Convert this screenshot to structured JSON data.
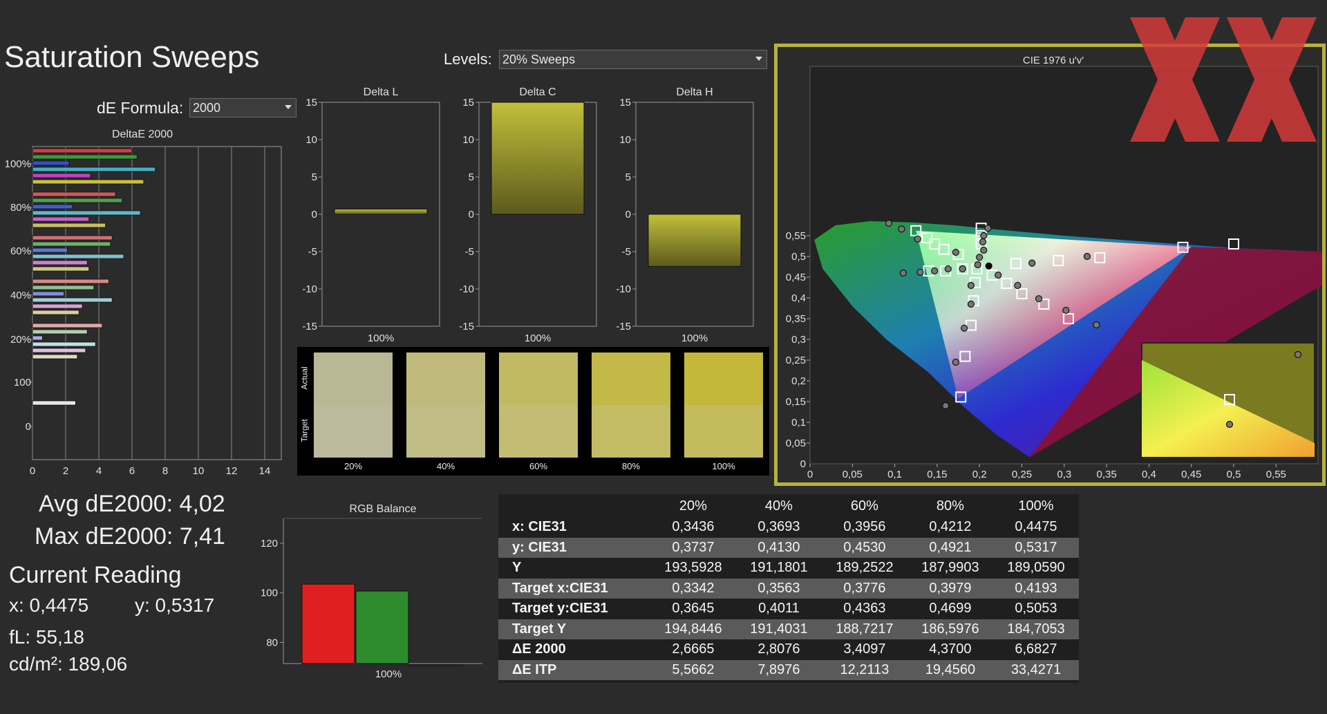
{
  "page": {
    "title": "Saturation Sweeps",
    "de_formula_label": "dE Formula:",
    "de_formula_value": "2000",
    "levels_label": "Levels:",
    "levels_value": "20% Sweeps"
  },
  "deltae_chart": {
    "title": "DeltaE 2000",
    "y_labels": [
      "100%",
      "80%",
      "60%",
      "40%",
      "20%",
      "100",
      "0"
    ],
    "x_ticks": [
      "0",
      "2",
      "4",
      "6",
      "8",
      "10",
      "12",
      "14"
    ],
    "x_max": 15,
    "groups": [
      {
        "bars": [
          {
            "v": 6.0,
            "c": "#d04040"
          },
          {
            "v": 6.3,
            "c": "#3a9a3a"
          },
          {
            "v": 2.2,
            "c": "#3050d0"
          },
          {
            "v": 7.4,
            "c": "#40b0c0"
          },
          {
            "v": 3.5,
            "c": "#c040c0"
          },
          {
            "v": 6.7,
            "c": "#c8c040"
          }
        ]
      },
      {
        "bars": [
          {
            "v": 5.0,
            "c": "#d05858"
          },
          {
            "v": 5.4,
            "c": "#50a050"
          },
          {
            "v": 2.4,
            "c": "#4060d0"
          },
          {
            "v": 6.5,
            "c": "#60b8c8"
          },
          {
            "v": 3.4,
            "c": "#c860c8"
          },
          {
            "v": 4.4,
            "c": "#c8c060"
          }
        ]
      },
      {
        "bars": [
          {
            "v": 4.8,
            "c": "#d07070"
          },
          {
            "v": 4.7,
            "c": "#70b070"
          },
          {
            "v": 2.1,
            "c": "#6078d8"
          },
          {
            "v": 5.5,
            "c": "#80c0d0"
          },
          {
            "v": 3.3,
            "c": "#d080d0"
          },
          {
            "v": 3.4,
            "c": "#d0c880"
          }
        ]
      },
      {
        "bars": [
          {
            "v": 4.6,
            "c": "#d88888"
          },
          {
            "v": 3.7,
            "c": "#90c090"
          },
          {
            "v": 1.9,
            "c": "#8090d8"
          },
          {
            "v": 4.8,
            "c": "#a0d0d8"
          },
          {
            "v": 3.0,
            "c": "#d8a0d8"
          },
          {
            "v": 2.8,
            "c": "#d8d0a0"
          }
        ]
      },
      {
        "bars": [
          {
            "v": 4.2,
            "c": "#e0a8a8"
          },
          {
            "v": 3.3,
            "c": "#b0d0b0"
          },
          {
            "v": 0.6,
            "c": "#a8b0e0"
          },
          {
            "v": 3.8,
            "c": "#c0e0e0"
          },
          {
            "v": 3.2,
            "c": "#e0c0e0"
          },
          {
            "v": 2.7,
            "c": "#e0dcc0"
          }
        ]
      },
      {
        "bars": [
          {
            "v": 2.6,
            "c": "#e8e8e8"
          }
        ]
      }
    ]
  },
  "delta_charts": [
    {
      "title": "Delta L",
      "value": 0.7,
      "x_label": "100%"
    },
    {
      "title": "Delta C",
      "value": 15.0,
      "x_label": "100%"
    },
    {
      "title": "Delta H",
      "value": -7.0,
      "x_label": "100%"
    }
  ],
  "delta_axis": {
    "ticks": [
      "15",
      "10",
      "5",
      "0",
      "-5",
      "-10",
      "-15"
    ]
  },
  "swatches": {
    "actual_label": "Actual",
    "target_label": "Target",
    "items": [
      {
        "label": "20%",
        "actual": "#bab795",
        "target": "#bcb99c"
      },
      {
        "label": "40%",
        "actual": "#bfba7b",
        "target": "#c0bc86"
      },
      {
        "label": "60%",
        "actual": "#c2ba62",
        "target": "#c3bd73"
      },
      {
        "label": "80%",
        "actual": "#c3b948",
        "target": "#c3bc65"
      },
      {
        "label": "100%",
        "actual": "#c4b73a",
        "target": "#c3bb5e"
      }
    ]
  },
  "stats": {
    "avg_label": "Avg dE2000: 4,02",
    "max_label": "Max dE2000: 7,41",
    "current_reading": "Current Reading",
    "x_label": "x: 0,4475",
    "y_label": "y: 0,5317",
    "fl_label": "fL: 55,18",
    "cdm_label": "cd/m²: 189,06"
  },
  "rgb_balance": {
    "title": "RGB Balance",
    "y_ticks": [
      "120",
      "100",
      "80"
    ],
    "x_label": "100%",
    "bars": [
      {
        "name": "R",
        "value": 103.5,
        "color": "#e02020"
      },
      {
        "name": "G",
        "value": 100.7,
        "color": "#2e8b2e"
      },
      {
        "name": "B",
        "value": 71,
        "color": "#3040c0"
      }
    ]
  },
  "cie": {
    "title": "CIE 1976 u'v'",
    "x_ticks": [
      "0",
      "0,05",
      "0,1",
      "0,15",
      "0,2",
      "0,25",
      "0,3",
      "0,35",
      "0,4",
      "0,45",
      "0,5",
      "0,55"
    ],
    "y_ticks": [
      "0,05",
      "0,1",
      "0,15",
      "0,2",
      "0,25",
      "0,3",
      "0,35",
      "0,4",
      "0,45",
      "0,5",
      "0,55"
    ],
    "y_zero": "0"
  },
  "table": {
    "headers": [
      "",
      "20%",
      "40%",
      "60%",
      "80%",
      "100%"
    ],
    "rows": [
      {
        "label": "x: CIE31",
        "values": [
          "0,3436",
          "0,3693",
          "0,3956",
          "0,4212",
          "0,4475"
        ]
      },
      {
        "label": "y: CIE31",
        "values": [
          "0,3737",
          "0,4130",
          "0,4530",
          "0,4921",
          "0,5317"
        ]
      },
      {
        "label": "Y",
        "values": [
          "193,5928",
          "191,1801",
          "189,2522",
          "187,9903",
          "189,0590"
        ]
      },
      {
        "label": "Target x:CIE31",
        "values": [
          "0,3342",
          "0,3563",
          "0,3776",
          "0,3979",
          "0,4193"
        ]
      },
      {
        "label": "Target y:CIE31",
        "values": [
          "0,3645",
          "0,4011",
          "0,4363",
          "0,4699",
          "0,5053"
        ]
      },
      {
        "label": "Target Y",
        "values": [
          "194,8446",
          "191,4031",
          "188,7217",
          "186,5976",
          "184,7053"
        ]
      },
      {
        "label": "ΔE 2000",
        "values": [
          "2,6665",
          "2,8076",
          "3,4097",
          "4,3700",
          "6,6827"
        ]
      },
      {
        "label": "ΔE ITP",
        "values": [
          "5,5662",
          "7,8976",
          "12,2113",
          "19,4560",
          "33,4271"
        ]
      }
    ]
  }
}
